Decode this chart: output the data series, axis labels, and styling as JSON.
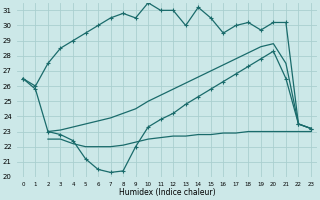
{
  "xlabel": "Humidex (Indice chaleur)",
  "xlim": [
    -0.5,
    23.5
  ],
  "ylim": [
    20,
    31.5
  ],
  "xticks": [
    0,
    1,
    2,
    3,
    4,
    5,
    6,
    7,
    8,
    9,
    10,
    11,
    12,
    13,
    14,
    15,
    16,
    17,
    18,
    19,
    20,
    21,
    22,
    23
  ],
  "yticks": [
    20,
    21,
    22,
    23,
    24,
    25,
    26,
    27,
    28,
    29,
    30,
    31
  ],
  "bg_color": "#cce8e8",
  "line_color": "#1a6b6b",
  "grid_color": "#aacfcf",
  "curve1_x": [
    0,
    1,
    2,
    3,
    4,
    5,
    6,
    7,
    8,
    9,
    10,
    11,
    12,
    13,
    14,
    15,
    16,
    17,
    18,
    19,
    20,
    21,
    22,
    23
  ],
  "curve1_y": [
    26.5,
    26.0,
    27.5,
    28.5,
    29.0,
    29.5,
    30.0,
    30.5,
    30.8,
    30.5,
    31.5,
    31.0,
    31.0,
    30.0,
    31.2,
    30.5,
    29.5,
    30.0,
    30.2,
    29.7,
    30.2,
    30.2,
    23.5,
    23.2
  ],
  "curve1_markers": [
    0,
    1,
    2,
    3,
    4,
    5,
    6,
    7,
    8,
    9,
    10,
    11,
    12,
    13,
    14,
    15,
    16,
    17,
    18,
    19,
    20,
    21,
    22,
    23
  ],
  "curve2_x": [
    0,
    1,
    2,
    3,
    4,
    5,
    6,
    7,
    8,
    9,
    10,
    11,
    12,
    13,
    14,
    15,
    16,
    17,
    18,
    19,
    20,
    21,
    22,
    23
  ],
  "curve2_y": [
    26.5,
    25.8,
    23.0,
    22.8,
    22.4,
    21.2,
    20.5,
    20.3,
    20.4,
    22.0,
    23.3,
    23.8,
    24.2,
    24.8,
    25.3,
    25.8,
    26.3,
    26.8,
    27.3,
    27.8,
    28.3,
    26.5,
    23.5,
    23.2
  ],
  "curve3_x": [
    2,
    3,
    4,
    5,
    6,
    7,
    8,
    9,
    10,
    11,
    12,
    13,
    14,
    15,
    16,
    17,
    18,
    19,
    20,
    21,
    22,
    23
  ],
  "curve3_y": [
    23.0,
    23.1,
    23.3,
    23.5,
    23.7,
    23.9,
    24.2,
    24.5,
    25.0,
    25.4,
    25.8,
    26.2,
    26.6,
    27.0,
    27.4,
    27.8,
    28.2,
    28.6,
    28.8,
    27.5,
    23.5,
    23.2
  ],
  "curve4_x": [
    2,
    3,
    4,
    5,
    6,
    7,
    8,
    9,
    10,
    11,
    12,
    13,
    14,
    15,
    16,
    17,
    18,
    19,
    20,
    21,
    22,
    23
  ],
  "curve4_y": [
    22.5,
    22.5,
    22.2,
    22.0,
    22.0,
    22.0,
    22.1,
    22.3,
    22.5,
    22.6,
    22.7,
    22.7,
    22.8,
    22.8,
    22.9,
    22.9,
    23.0,
    23.0,
    23.0,
    23.0,
    23.0,
    23.0
  ]
}
